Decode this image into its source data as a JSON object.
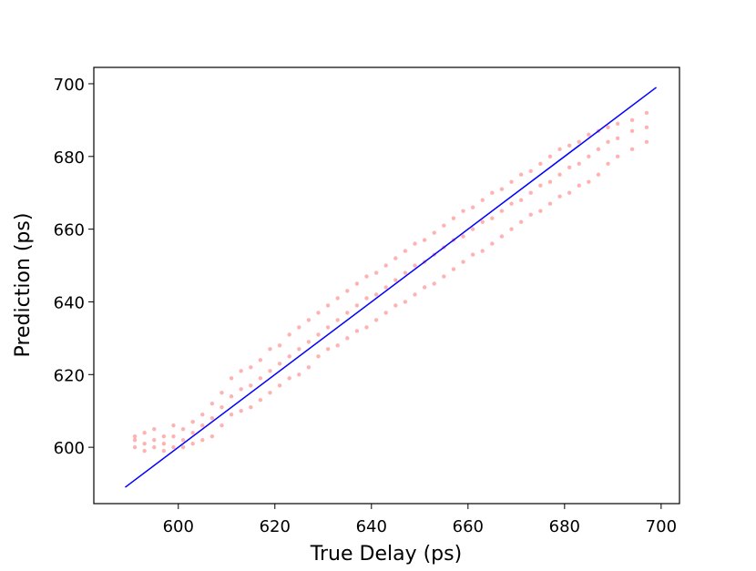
{
  "chart_data": {
    "type": "scatter",
    "xlabel": "True Delay (ps)",
    "ylabel": "Prediction (ps)",
    "xlim": [
      582.5,
      703.8
    ],
    "ylim": [
      584.5,
      704.5
    ],
    "xticks": [
      600,
      620,
      640,
      660,
      680,
      700
    ],
    "yticks": [
      600,
      620,
      640,
      660,
      680,
      700
    ],
    "grid": false,
    "series": [
      {
        "color": "#ff0000",
        "x": [
          591,
          591,
          591,
          593,
          593,
          593,
          595,
          595,
          595,
          597,
          597,
          597,
          599,
          599,
          599,
          601,
          601,
          601,
          603,
          603,
          603,
          605,
          605,
          605,
          607,
          607,
          607,
          609,
          609,
          609,
          611,
          611,
          611,
          613,
          613,
          613,
          615,
          615,
          615,
          617,
          617,
          617,
          619,
          619,
          619,
          621,
          621,
          621,
          623,
          623,
          623,
          625,
          625,
          625,
          627,
          627,
          627,
          629,
          629,
          629,
          631,
          631,
          631,
          633,
          633,
          633,
          635,
          635,
          635,
          637,
          637,
          637,
          639,
          639,
          639,
          641,
          641,
          641,
          643,
          643,
          643,
          645,
          645,
          645,
          647,
          647,
          647,
          649,
          649,
          649,
          651,
          651,
          651,
          653,
          653,
          653,
          655,
          655,
          655,
          657,
          657,
          657,
          659,
          659,
          659,
          661,
          661,
          661,
          663,
          663,
          663,
          665,
          665,
          665,
          667,
          667,
          667,
          669,
          669,
          669,
          671,
          671,
          671,
          673,
          673,
          673,
          675,
          675,
          675,
          677,
          677,
          677,
          679,
          679,
          679,
          681,
          681,
          681,
          683,
          683,
          683,
          685,
          685,
          685,
          687,
          687,
          687,
          689,
          689,
          689,
          691,
          691,
          691,
          694,
          694,
          694,
          697,
          697,
          697
        ],
        "values": [
          600,
          602,
          603,
          599,
          601,
          604,
          600,
          602,
          605,
          599,
          601,
          603,
          600,
          603,
          606,
          600,
          602,
          605,
          601,
          604,
          607,
          602,
          606,
          609,
          603,
          608,
          612,
          606,
          611,
          615,
          609,
          614,
          619,
          610,
          616,
          621,
          611,
          617,
          622,
          613,
          619,
          624,
          615,
          621,
          627,
          617,
          623,
          628,
          619,
          625,
          631,
          620,
          627,
          633,
          622,
          629,
          635,
          625,
          631,
          637,
          627,
          633,
          639,
          628,
          635,
          641,
          630,
          637,
          643,
          632,
          639,
          645,
          633,
          641,
          647,
          635,
          642,
          648,
          637,
          644,
          650,
          639,
          646,
          652,
          640,
          648,
          654,
          642,
          650,
          656,
          644,
          651,
          657,
          645,
          653,
          659,
          647,
          655,
          661,
          649,
          657,
          663,
          651,
          658,
          665,
          653,
          660,
          666,
          654,
          662,
          668,
          656,
          663,
          670,
          658,
          665,
          671,
          660,
          667,
          673,
          662,
          668,
          675,
          664,
          670,
          676,
          665,
          672,
          678,
          667,
          673,
          680,
          669,
          675,
          682,
          670,
          677,
          683,
          672,
          678,
          684,
          673,
          680,
          686,
          675,
          682,
          687,
          678,
          684,
          688,
          680,
          685,
          689,
          682,
          687,
          690,
          684,
          688,
          692
        ]
      }
    ],
    "line": {
      "color": "#0000ff",
      "x": [
        589,
        699
      ],
      "values": [
        589,
        699
      ]
    }
  }
}
